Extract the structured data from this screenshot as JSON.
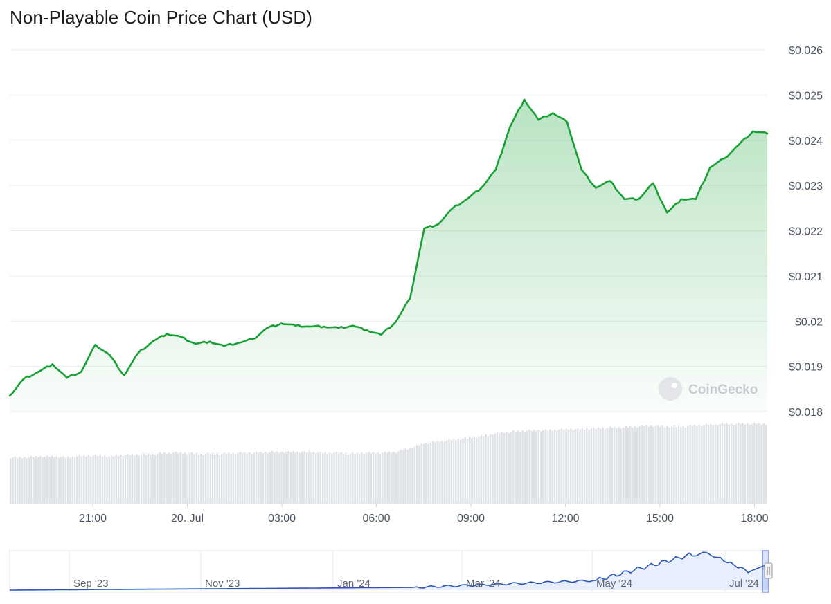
{
  "title": "Non-Playable Coin Price Chart (USD)",
  "watermark": "CoinGecko",
  "colors": {
    "line": "#16a034",
    "area_top": "#16a034",
    "volume": "#dfe2e6",
    "grid": "#e9ecef",
    "navigator_line": "#2a56b8",
    "navigator_fill": "#e8eefc"
  },
  "chart_data": {
    "type": "area",
    "title": "Non-Playable Coin Price Chart (USD)",
    "y_axis": {
      "ticks": [
        "$0.018",
        "$0.019",
        "$0.02",
        "$0.021",
        "$0.022",
        "$0.023",
        "$0.024",
        "$0.025",
        "$0.026"
      ],
      "ylim": [
        0.018,
        0.026
      ]
    },
    "x_axis": {
      "ticks": [
        "21:00",
        "20. Jul",
        "03:00",
        "06:00",
        "09:00",
        "12:00",
        "15:00",
        "18:00"
      ]
    },
    "grid": true,
    "series": [
      {
        "x": [
          "19. Jul 18:30",
          "19. Jul 19:00",
          "19. Jul 19:30",
          "19. Jul 20:00",
          "19. Jul 20:30",
          "19. Jul 21:00",
          "19. Jul 21:30",
          "19. Jul 22:00",
          "19. Jul 22:30",
          "19. Jul 23:00",
          "19. Jul 23:30",
          "20. Jul 00:00",
          "20. Jul 00:30",
          "20. Jul 01:00",
          "20. Jul 01:30",
          "20. Jul 02:00",
          "20. Jul 02:30",
          "20. Jul 03:00",
          "20. Jul 03:30",
          "20. Jul 04:00",
          "20. Jul 04:30",
          "20. Jul 05:00",
          "20. Jul 05:30",
          "20. Jul 06:00",
          "20. Jul 06:30",
          "20. Jul 07:00",
          "20. Jul 07:15",
          "20. Jul 07:30",
          "20. Jul 07:45",
          "20. Jul 08:00",
          "20. Jul 08:30",
          "20. Jul 09:00",
          "20. Jul 09:30",
          "20. Jul 10:00",
          "20. Jul 10:30",
          "20. Jul 10:45",
          "20. Jul 11:00",
          "20. Jul 11:15",
          "20. Jul 11:30",
          "20. Jul 11:45",
          "20. Jul 12:00",
          "20. Jul 12:30",
          "20. Jul 13:00",
          "20. Jul 13:30",
          "20. Jul 14:00",
          "20. Jul 14:30",
          "20. Jul 15:00",
          "20. Jul 15:30",
          "20. Jul 16:00",
          "20. Jul 16:30",
          "20. Jul 17:00",
          "20. Jul 17:30",
          "20. Jul 18:00",
          "20. Jul 18:15"
        ],
        "values": [
          0.01835,
          0.01873,
          0.01888,
          0.01905,
          0.01875,
          0.01888,
          0.01948,
          0.01925,
          0.0188,
          0.0193,
          0.01955,
          0.01972,
          0.01965,
          0.0195,
          0.01955,
          0.01945,
          0.01952,
          0.0196,
          0.01985,
          0.01995,
          0.0199,
          0.01988,
          0.01988,
          0.01985,
          0.0199,
          0.0198,
          0.0197,
          0.01998,
          0.0205,
          0.02205,
          0.02215,
          0.0225,
          0.0227,
          0.02295,
          0.02335,
          0.0243,
          0.0249,
          0.02445,
          0.0246,
          0.0244,
          0.02335,
          0.02295,
          0.0231,
          0.0227,
          0.0227,
          0.02305,
          0.0224,
          0.0227,
          0.0227,
          0.0234,
          0.0236,
          0.0239,
          0.0242,
          0.02415
        ]
      }
    ],
    "volume": {
      "relative_values": [
        0.52,
        0.52,
        0.53,
        0.53,
        0.52,
        0.54,
        0.54,
        0.53,
        0.55,
        0.55,
        0.56,
        0.57,
        0.57,
        0.56,
        0.56,
        0.56,
        0.57,
        0.57,
        0.58,
        0.58,
        0.58,
        0.58,
        0.57,
        0.57,
        0.56,
        0.57,
        0.57,
        0.58,
        0.62,
        0.68,
        0.7,
        0.72,
        0.74,
        0.76,
        0.79,
        0.81,
        0.82,
        0.83,
        0.83,
        0.84,
        0.84,
        0.85,
        0.86,
        0.86,
        0.87,
        0.88,
        0.87,
        0.87,
        0.88,
        0.89,
        0.9,
        0.9,
        0.9,
        0.9
      ]
    },
    "navigator": {
      "x_ticks": [
        "Sep '23",
        "Nov '23",
        "Jan '24",
        "Mar '24",
        "May '24",
        "Jul '24"
      ]
    }
  }
}
